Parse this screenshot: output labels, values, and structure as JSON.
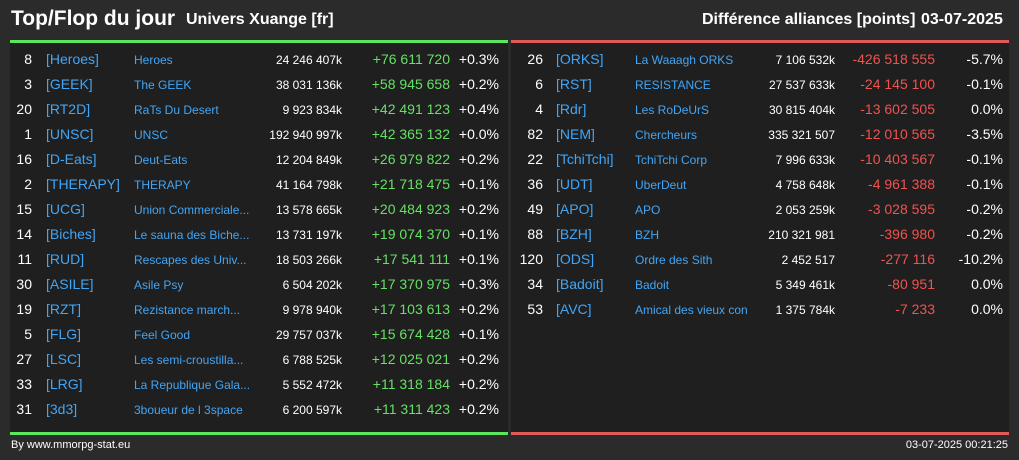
{
  "header": {
    "title": "Top/Flop du jour",
    "universe": "Univers Xuange [fr]",
    "subtitle": "Différence alliances [points]",
    "date": "03-07-2025"
  },
  "colors": {
    "top_accent": "#5ce65c",
    "flop_accent": "#e05a5a",
    "tag_color": "#42a5f5"
  },
  "top": [
    {
      "rank": "8",
      "tag": "[Heroes]",
      "name": "Heroes",
      "points": "24 246 407k",
      "diff": "+76 611 720",
      "pct": "+0.3%"
    },
    {
      "rank": "3",
      "tag": "[GEEK]",
      "name": "The GEEK",
      "points": "38 031 136k",
      "diff": "+58 945 658",
      "pct": "+0.2%"
    },
    {
      "rank": "20",
      "tag": "[RT2D]",
      "name": "RaTs Du Desert",
      "points": "9 923 834k",
      "diff": "+42 491 123",
      "pct": "+0.4%"
    },
    {
      "rank": "1",
      "tag": "[UNSC]",
      "name": "UNSC",
      "points": "192 940 997k",
      "diff": "+42 365 132",
      "pct": "+0.0%"
    },
    {
      "rank": "16",
      "tag": "[D-Eats]",
      "name": "Deut-Eats",
      "points": "12 204 849k",
      "diff": "+26 979 822",
      "pct": "+0.2%"
    },
    {
      "rank": "2",
      "tag": "[THERAPY]",
      "name": "THERAPY",
      "points": "41 164 798k",
      "diff": "+21 718 475",
      "pct": "+0.1%"
    },
    {
      "rank": "15",
      "tag": "[UCG]",
      "name": "Union Commerciale...",
      "points": "13 578 665k",
      "diff": "+20 484 923",
      "pct": "+0.2%"
    },
    {
      "rank": "14",
      "tag": "[Biches]",
      "name": "Le sauna des Biche...",
      "points": "13 731 197k",
      "diff": "+19 074 370",
      "pct": "+0.1%"
    },
    {
      "rank": "11",
      "tag": "[RUD]",
      "name": "Rescapes des Univ...",
      "points": "18 503 266k",
      "diff": "+17 541 111",
      "pct": "+0.1%"
    },
    {
      "rank": "30",
      "tag": "[ASILE]",
      "name": "Asile Psy",
      "points": "6 504 202k",
      "diff": "+17 370 975",
      "pct": "+0.3%"
    },
    {
      "rank": "19",
      "tag": "[RZT]",
      "name": "Rezistance march...",
      "points": "9 978 940k",
      "diff": "+17 103 613",
      "pct": "+0.2%"
    },
    {
      "rank": "5",
      "tag": "[FLG]",
      "name": "Feel Good",
      "points": "29 757 037k",
      "diff": "+15 674 428",
      "pct": "+0.1%"
    },
    {
      "rank": "27",
      "tag": "[LSC]",
      "name": "Les semi-croustilla...",
      "points": "6 788 525k",
      "diff": "+12 025 021",
      "pct": "+0.2%"
    },
    {
      "rank": "33",
      "tag": "[LRG]",
      "name": "La Republique Gala...",
      "points": "5 552 472k",
      "diff": "+11 318 184",
      "pct": "+0.2%"
    },
    {
      "rank": "31",
      "tag": "[3d3]",
      "name": "3boueur de l 3space",
      "points": "6 200 597k",
      "diff": "+11 311 423",
      "pct": "+0.2%"
    }
  ],
  "flop": [
    {
      "rank": "26",
      "tag": "[ORKS]",
      "name": "La Waaagh ORKS",
      "points": "7 106 532k",
      "diff": "-426 518 555",
      "pct": "-5.7%"
    },
    {
      "rank": "6",
      "tag": "[RST]",
      "name": "RESISTANCE",
      "points": "27 537 633k",
      "diff": "-24 145 100",
      "pct": "-0.1%"
    },
    {
      "rank": "4",
      "tag": "[Rdr]",
      "name": "Les RoDeUrS",
      "points": "30 815 404k",
      "diff": "-13 602 505",
      "pct": "0.0%"
    },
    {
      "rank": "82",
      "tag": "[NEM]",
      "name": "Chercheurs",
      "points": "335 321 507",
      "diff": "-12 010 565",
      "pct": "-3.5%"
    },
    {
      "rank": "22",
      "tag": "[TchiTchi]",
      "name": "TchiTchi Corp",
      "points": "7 996 633k",
      "diff": "-10 403 567",
      "pct": "-0.1%"
    },
    {
      "rank": "36",
      "tag": "[UDT]",
      "name": "UberDeut",
      "points": "4 758 648k",
      "diff": "-4 961 388",
      "pct": "-0.1%"
    },
    {
      "rank": "49",
      "tag": "[APO]",
      "name": "APO",
      "points": "2 053 259k",
      "diff": "-3 028 595",
      "pct": "-0.2%"
    },
    {
      "rank": "88",
      "tag": "[BZH]",
      "name": "BZH",
      "points": "210 321 981",
      "diff": "-396 980",
      "pct": "-0.2%"
    },
    {
      "rank": "120",
      "tag": "[ODS]",
      "name": "Ordre des Sith",
      "points": "2 452 517",
      "diff": "-277 116",
      "pct": "-10.2%"
    },
    {
      "rank": "34",
      "tag": "[Badoit]",
      "name": "Badoit",
      "points": "5 349 461k",
      "diff": "-80 951",
      "pct": "0.0%"
    },
    {
      "rank": "53",
      "tag": "[AVC]",
      "name": "Amical des vieux con",
      "points": "1 375 784k",
      "diff": "-7 233",
      "pct": "0.0%"
    }
  ],
  "footer": {
    "source": "By www.mmorpg-stat.eu",
    "timestamp": "03-07-2025 00:21:25"
  }
}
